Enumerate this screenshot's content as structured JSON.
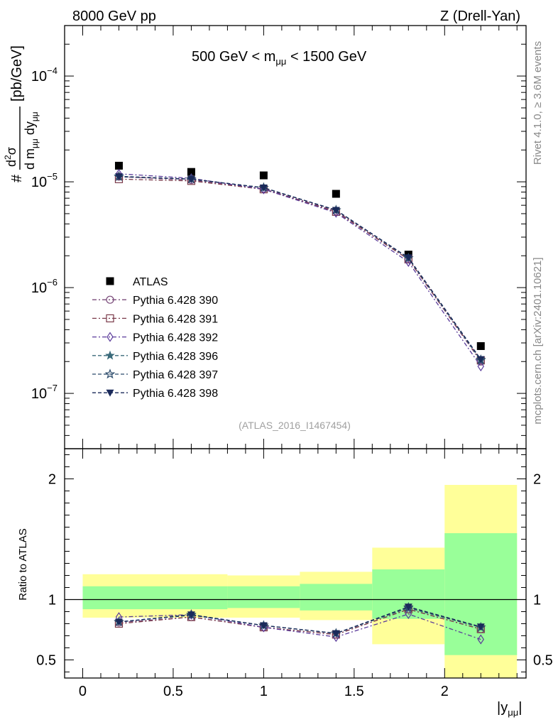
{
  "header": {
    "left_label": "8000 GeV pp",
    "right_label": "Z (Drell-Yan)",
    "mass_window": "500 GeV < m",
    "mass_window_sub": "μμ",
    "mass_window_end": " < 1500 GeV",
    "analysis_id": "(ATLAS_2016_I1467454)",
    "side_label_top": "Rivet 4.1.0, ≥ 3.6M events",
    "side_label_bottom": "mcplots.cern.ch [arXiv:2401.10621]"
  },
  "axis_text": {
    "y_main_prefix": "#",
    "y_main_num": "d",
    "y_main_num_sup": "2",
    "y_main_num_end": "σ",
    "y_main_den_d1": "d m",
    "y_main_den_sub1": "μμ",
    "y_main_den_d2": " dy",
    "y_main_den_sub2": "μμ",
    "y_main_unit": "[pb/GeV]",
    "y_ratio": "Ratio to ATLAS",
    "x_label": "|y",
    "x_label_sub": "μμ",
    "x_label_end": "|"
  },
  "chart_data": [
    {
      "type": "scatter",
      "panel": "main",
      "yscale": "log",
      "xlim": [
        -0.1,
        2.45
      ],
      "ylim": [
        3e-08,
        0.0003
      ],
      "yticks": [
        {
          "value": 1e-07,
          "mant": "10",
          "exp": "−7"
        },
        {
          "value": 1e-06,
          "mant": "10",
          "exp": "−6"
        },
        {
          "value": 1e-05,
          "mant": "10",
          "exp": "−5"
        },
        {
          "value": 0.0001,
          "mant": "10",
          "exp": "−4"
        }
      ],
      "x": [
        0.2,
        0.6,
        1.0,
        1.4,
        1.8,
        2.2
      ],
      "series": [
        {
          "name": "ATLAS",
          "marker": "square-filled",
          "color": "#000000",
          "line": false,
          "values": [
            1.42e-05,
            1.24e-05,
            1.15e-05,
            7.7e-06,
            2.05e-06,
            2.8e-07
          ]
        },
        {
          "name": "Pythia 6.428 390",
          "marker": "circle-open",
          "color": "#7a4a7a",
          "dash": "6,3,2,3",
          "values": [
            1.12e-05,
            1.04e-05,
            8.6e-06,
            5.3e-06,
            1.85e-06,
            2e-07
          ]
        },
        {
          "name": "Pythia 6.428 391",
          "marker": "square-open",
          "color": "#7a3a4a",
          "dash": "6,3,2,3",
          "values": [
            1.06e-05,
            1.02e-05,
            8.5e-06,
            5.2e-06,
            1.85e-06,
            2.05e-07
          ]
        },
        {
          "name": "Pythia 6.428 392",
          "marker": "diamond-open",
          "color": "#5a3a9a",
          "dash": "6,3,2,3",
          "values": [
            1.19e-05,
            1.08e-05,
            8.5e-06,
            5.1e-06,
            1.75e-06,
            1.8e-07
          ]
        },
        {
          "name": "Pythia 6.428 396",
          "marker": "star-filled",
          "color": "#3a6a7a",
          "dash": "5,3",
          "values": [
            1.13e-05,
            1.06e-05,
            8.8e-06,
            5.4e-06,
            1.9e-06,
            2.05e-07
          ]
        },
        {
          "name": "Pythia 6.428 397",
          "marker": "star-open",
          "color": "#2a4a6a",
          "dash": "5,3",
          "values": [
            1.12e-05,
            1.06e-05,
            8.8e-06,
            5.4e-06,
            1.9e-06,
            2.08e-07
          ]
        },
        {
          "name": "Pythia 6.428 398",
          "marker": "triangle-down-filled",
          "color": "#1a2a5a",
          "dash": "5,3",
          "values": [
            1.12e-05,
            1.06e-05,
            8.8e-06,
            5.4e-06,
            1.92e-06,
            2.1e-07
          ]
        }
      ]
    },
    {
      "type": "scatter",
      "panel": "ratio",
      "yscale": "linear",
      "xlim": [
        -0.1,
        2.45
      ],
      "ylim": [
        0.35,
        2.25
      ],
      "yticks": [
        0.5,
        1,
        2
      ],
      "ytick_labels": [
        "0.5",
        "1",
        "2"
      ],
      "xticks": [
        0,
        0.5,
        1,
        1.5,
        2
      ],
      "xtick_labels": [
        "0",
        "0.5",
        "1",
        "1.5",
        "2"
      ],
      "bands": {
        "edges": [
          0.0,
          0.8,
          1.2,
          1.6,
          2.0,
          2.4
        ],
        "yellow": [
          [
            0.85,
            1.21
          ],
          [
            0.85,
            1.2
          ],
          [
            0.83,
            1.23
          ],
          [
            0.63,
            1.43
          ],
          [
            0.3,
            1.95
          ]
        ],
        "green": [
          [
            0.92,
            1.11
          ],
          [
            0.93,
            1.11
          ],
          [
            0.91,
            1.13
          ],
          [
            0.84,
            1.25
          ],
          [
            0.54,
            1.55
          ]
        ]
      },
      "x": [
        0.2,
        0.6,
        1.0,
        1.4,
        1.8,
        2.2
      ],
      "series": [
        {
          "name": "Pythia 6.428 390",
          "values": [
            0.81,
            0.855,
            0.77,
            0.71,
            0.92,
            0.755
          ]
        },
        {
          "name": "Pythia 6.428 391",
          "values": [
            0.8,
            0.855,
            0.77,
            0.71,
            0.92,
            0.755
          ]
        },
        {
          "name": "Pythia 6.428 392",
          "values": [
            0.855,
            0.875,
            0.77,
            0.69,
            0.88,
            0.67
          ]
        },
        {
          "name": "Pythia 6.428 396",
          "values": [
            0.815,
            0.87,
            0.785,
            0.72,
            0.93,
            0.77
          ]
        },
        {
          "name": "Pythia 6.428 397",
          "values": [
            0.815,
            0.875,
            0.785,
            0.72,
            0.935,
            0.77
          ]
        },
        {
          "name": "Pythia 6.428 398",
          "values": [
            0.815,
            0.875,
            0.785,
            0.72,
            0.94,
            0.775
          ]
        }
      ]
    }
  ],
  "colors": {
    "band_yellow": "#ffff99",
    "band_green": "#99ff99"
  }
}
